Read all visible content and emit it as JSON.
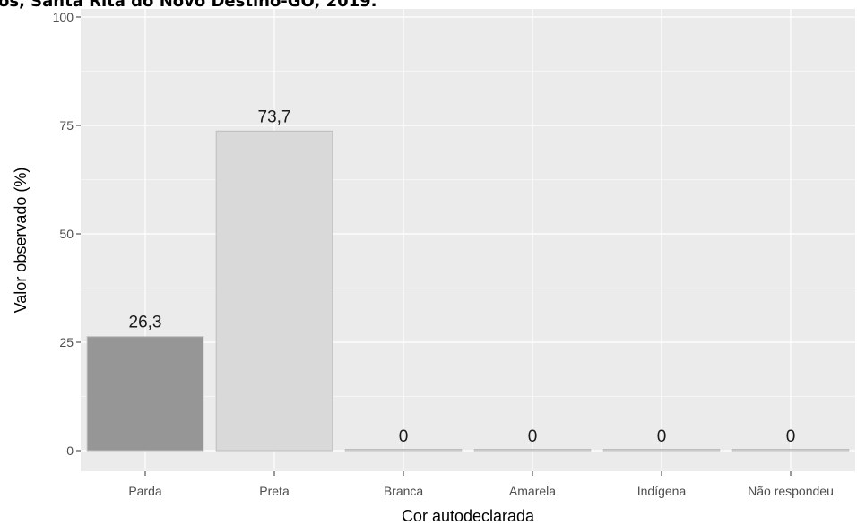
{
  "title": "os, Santa Rita do Novo Destino-GO, 2019.",
  "chart_data": {
    "type": "bar",
    "title": "os, Santa Rita do Novo Destino-GO, 2019.",
    "xlabel": "Cor autodeclarada",
    "ylabel": "Valor observado (%)",
    "categories": [
      "Parda",
      "Preta",
      "Branca",
      "Amarela",
      "Indígena",
      "Não respondeu"
    ],
    "values": [
      26.3,
      73.7,
      0,
      0,
      0,
      0
    ],
    "data_labels": [
      "26,3",
      "73,7",
      "0",
      "0",
      "0",
      "0"
    ],
    "ylim": [
      0,
      100
    ],
    "yticks": [
      0,
      25,
      50,
      75,
      100
    ],
    "ytick_labels": [
      "0",
      "25",
      "50",
      "75",
      "100"
    ],
    "grid": true,
    "bar_colors": [
      "#969696",
      "#d9d9d9",
      "#d9d9d9",
      "#d9d9d9",
      "#d9d9d9",
      "#d9d9d9"
    ],
    "panel_background": "#ebebeb",
    "grid_color": "#ffffff"
  }
}
